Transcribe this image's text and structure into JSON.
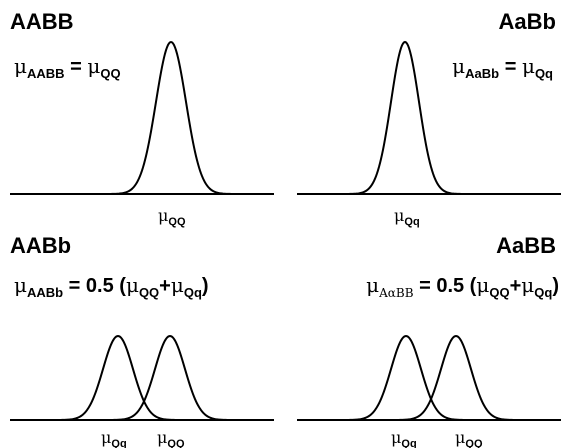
{
  "panels": {
    "aabb": {
      "title": "AABB",
      "formula": {
        "lhs_sub": "AABB",
        "eq": "=",
        "rhs_sub": "QQ"
      },
      "ticks": [
        {
          "sub": "QQ"
        }
      ]
    },
    "aabb_het": {
      "title": "AaBb",
      "formula": {
        "lhs_sub": "AaBb",
        "eq": "=",
        "rhs_sub": "Qq"
      },
      "ticks": [
        {
          "sub": "Qq"
        }
      ]
    },
    "aabb_b": {
      "title": "AABb",
      "formula": {
        "lhs_sub": "AABb",
        "eq": "= 0.5 (",
        "s1": "QQ",
        "plus": "+",
        "s2": "Qq",
        "close": ")"
      },
      "ticks": [
        {
          "sub": "Qq"
        },
        {
          "sub": "QQ"
        }
      ]
    },
    "aabb_bb": {
      "title": "AaBB",
      "formula": {
        "lhs_sub": "AαBB",
        "eq": "= 0.5 (",
        "s1": "QQ",
        "plus": "+",
        "s2": "Qq",
        "close": ")"
      },
      "ticks": [
        {
          "sub": "Qq"
        },
        {
          "sub": "QQ"
        }
      ]
    }
  },
  "mu_symbol": "μ",
  "colors": {
    "line": "#000000",
    "background": "#ffffff"
  }
}
